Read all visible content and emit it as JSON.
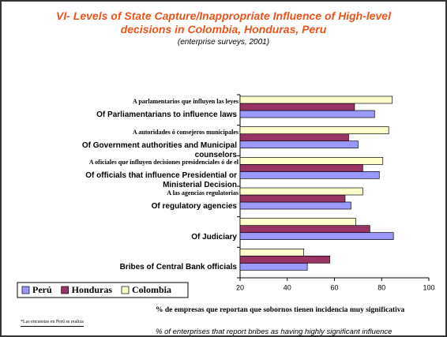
{
  "chart_data": {
    "type": "bar",
    "orientation": "horizontal",
    "title": "VI- Levels of State Capture/Inappropriate Influence of High-level decisions in Colombia, Honduras, Peru",
    "subtitle": "(enterprise surveys, 2001)",
    "categories": [
      "Of Parliamentarians to influence laws",
      "Of Government authorities and Municipal counselors",
      "Of officials that influence Presidential or Ministerial Decision",
      "Of regulatory agencies",
      "Of Judiciary",
      "Bribes of Central Bank officials"
    ],
    "categories_es": [
      "A parlamentarios que influyen las leyes",
      "A autoridades ó consejeros municipales",
      "A oficiales que influyen decisiones presidenciales ó de el",
      "A las agencias regulatorias",
      null,
      null
    ],
    "series": [
      {
        "name": "Perú",
        "color": "#9999ff",
        "values": [
          77,
          70,
          79,
          67,
          85,
          48.5
        ]
      },
      {
        "name": "Honduras",
        "color": "#993366",
        "values": [
          68.5,
          66,
          72,
          64.5,
          75,
          58
        ]
      },
      {
        "name": "Colombia",
        "color": "#ffffcc",
        "values": [
          84.5,
          83,
          80.5,
          72,
          69,
          47
        ]
      }
    ],
    "xlim": [
      20,
      100
    ],
    "xticks": [
      20,
      40,
      60,
      80,
      100
    ],
    "xlabel": "% de empresas que reportan que sobornos tienen incidencia muy significativa",
    "xlabel_en": "% of enterprises that report bribes as having highly significant influence",
    "footnote": "*Las encuestas en Perú se realiza",
    "legend": "bottom-left",
    "grid": false
  }
}
